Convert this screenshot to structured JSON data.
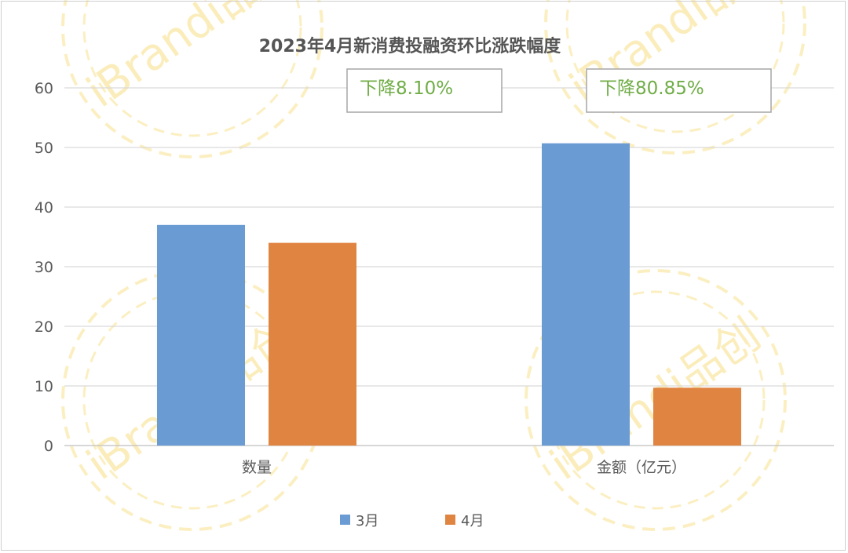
{
  "chart_data": {
    "type": "bar",
    "title": "2023年4月新消费投融资环比涨跌幅度",
    "categories": [
      "数量",
      "金额（亿元）"
    ],
    "series": [
      {
        "name": "3月",
        "values": [
          37,
          50.7
        ],
        "color": "#6a9bd3"
      },
      {
        "name": "4月",
        "values": [
          34,
          9.7
        ],
        "color": "#e08442"
      }
    ],
    "ylim": [
      0,
      60
    ],
    "yticks": [
      0,
      10,
      20,
      30,
      40,
      50,
      60
    ],
    "grid": true,
    "legend_position": "bottom",
    "annotations": [
      "下降8.10%",
      "下降80.85%"
    ],
    "annotation_color": "#70ad47",
    "watermark": "iBrandi品创"
  }
}
